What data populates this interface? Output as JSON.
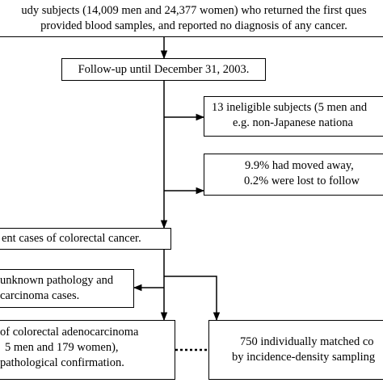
{
  "boxes": {
    "study_subjects": {
      "line1": "udy subjects (14,009 men and 24,377 women) who returned the first ques",
      "line2": "provided blood samples, and reported no diagnosis of any cancer."
    },
    "follow_up": {
      "text": "Follow-up until December 31, 2003."
    },
    "ineligible": {
      "line1": "13 ineligible subjects (5 men and",
      "line2": "e.g. non-Japanese nationa"
    },
    "moved_away": {
      "line1": "9.9% had moved away,",
      "line2": "0.2% were lost to follow"
    },
    "incident_cases": {
      "text": "ent cases of colorectal cancer."
    },
    "unknown_pathology": {
      "line1": "unknown pathology and",
      "line2": "carcinoma cases."
    },
    "adenocarcinoma": {
      "line1": "of colorectal adenocarcinoma",
      "line2": "5 men and 179 women),",
      "line3": "pathological confirmation."
    },
    "matched_controls": {
      "line1": "750 individually matched co",
      "line2": "by incidence-density sampling"
    }
  },
  "colors": {
    "line": "#000000",
    "box_border": "#000000",
    "background": "#ffffff"
  }
}
